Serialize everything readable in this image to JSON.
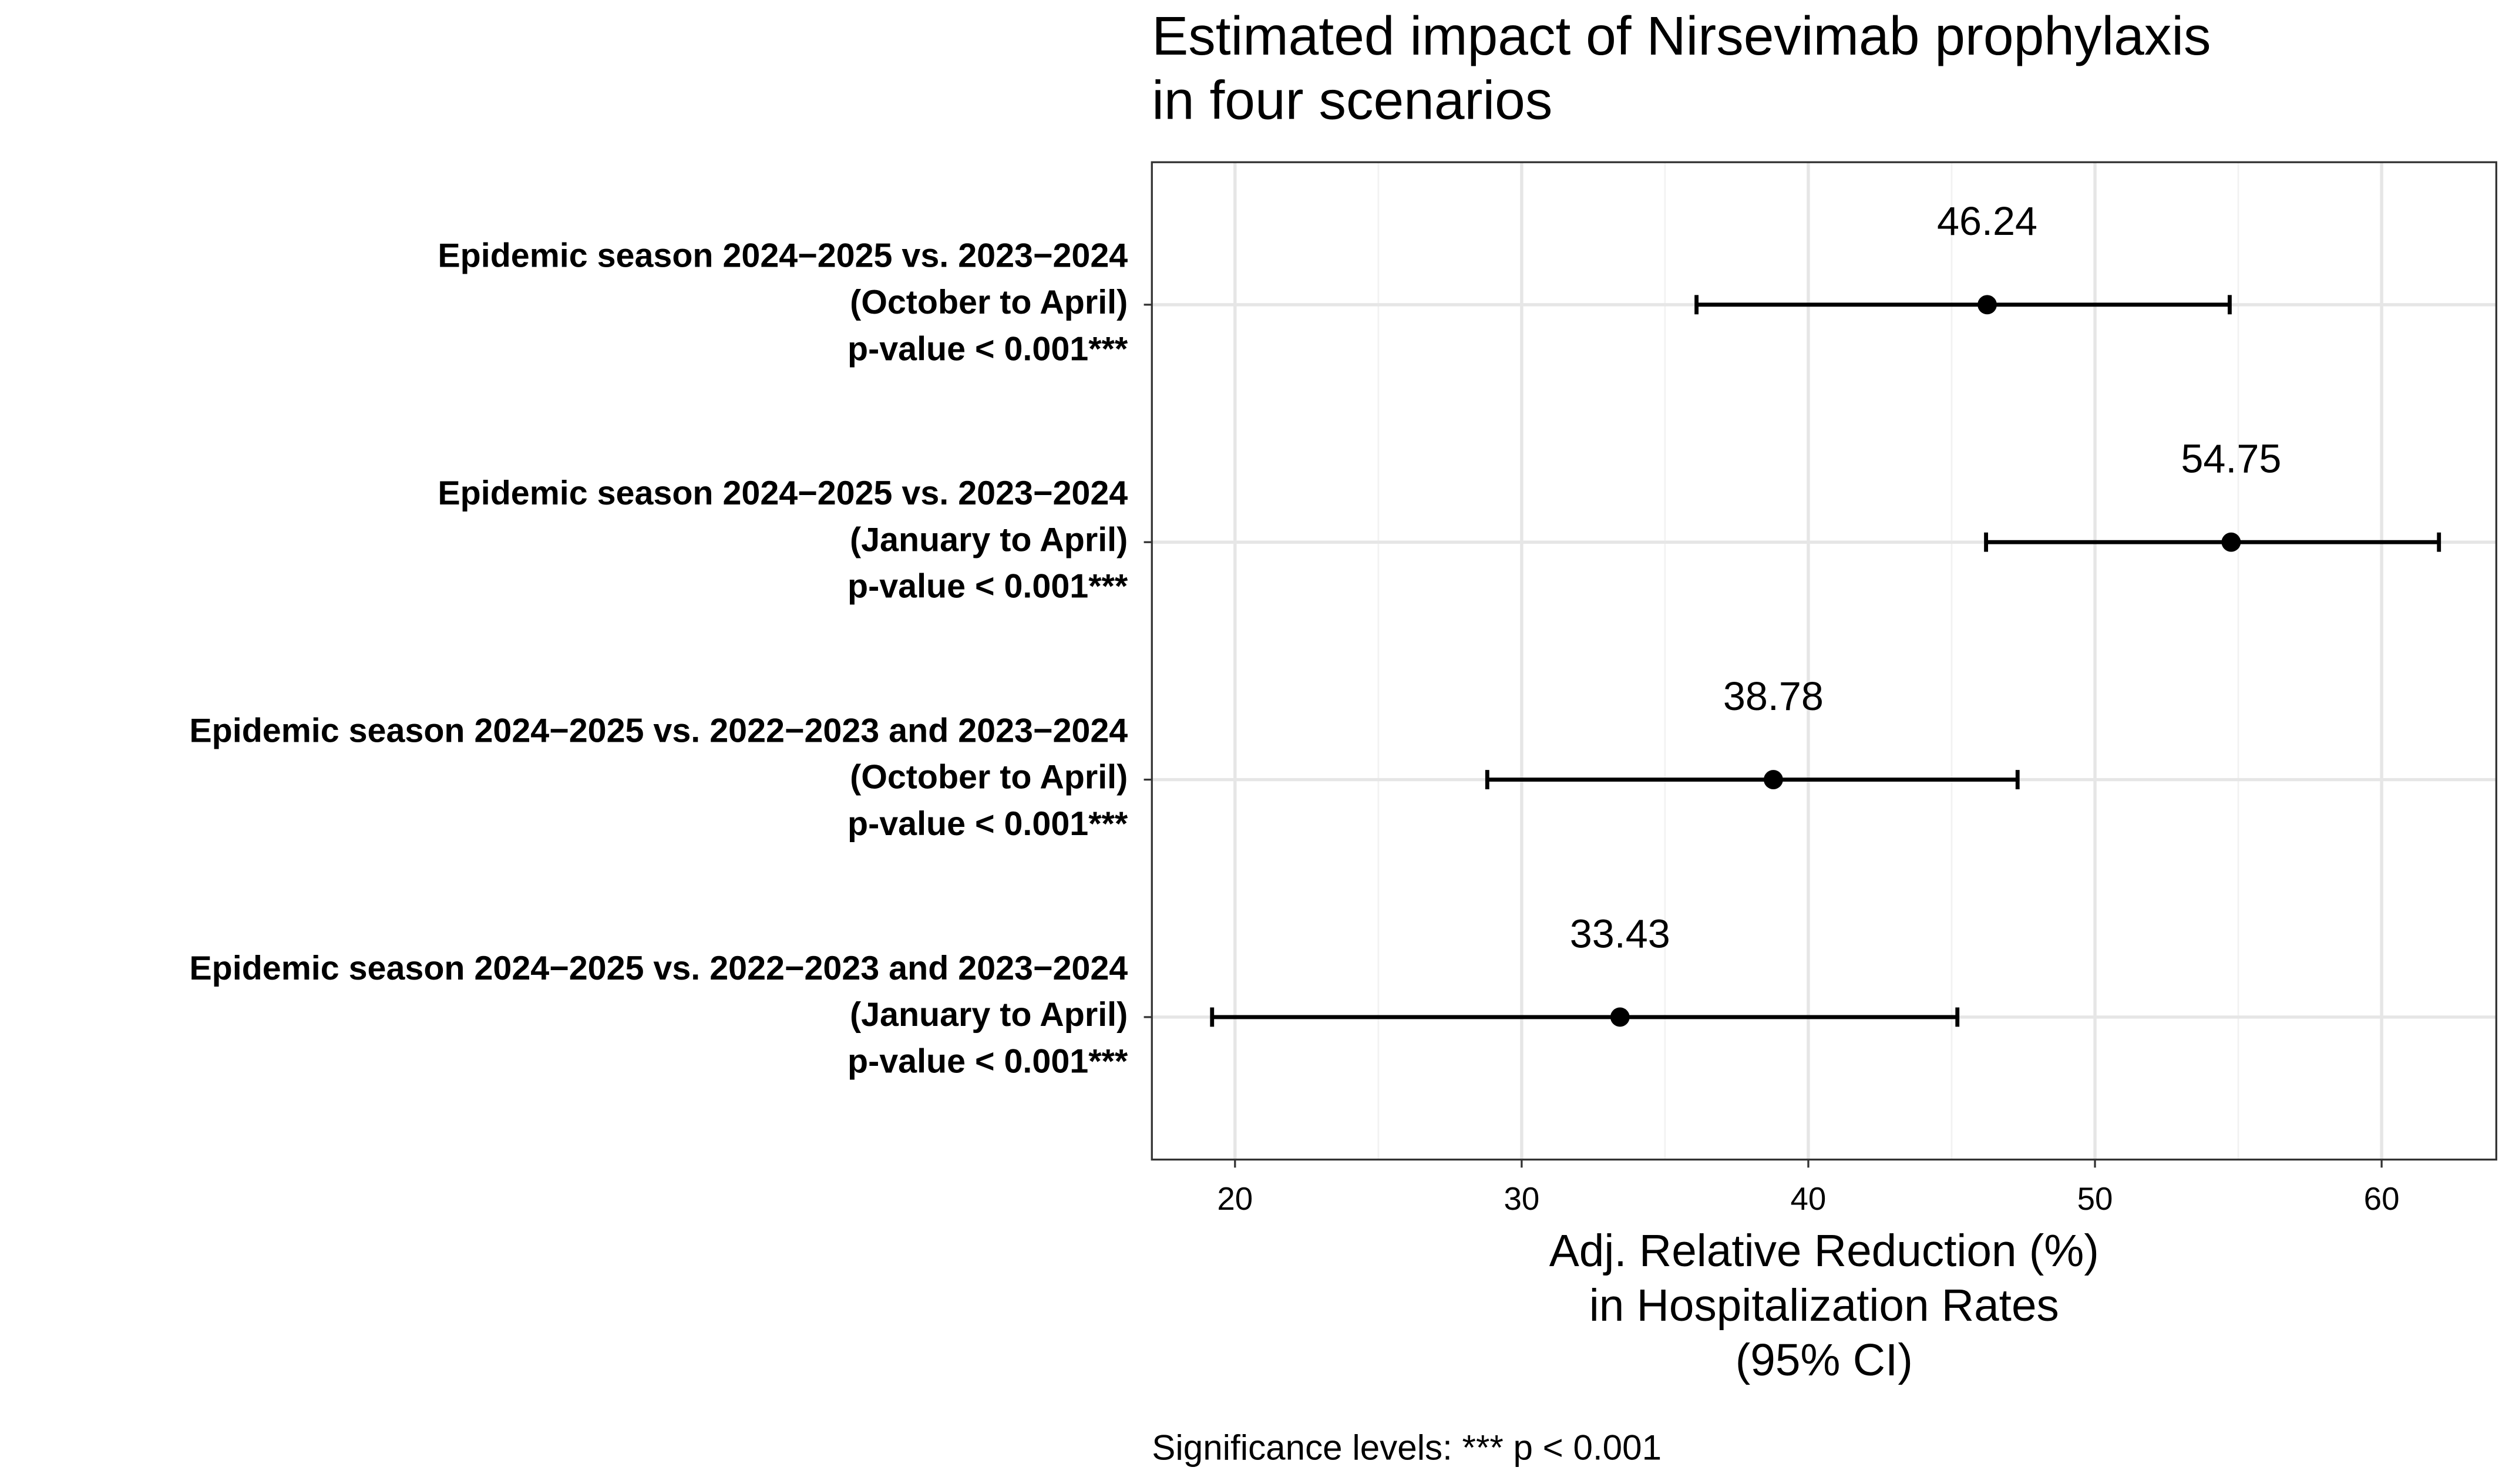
{
  "chart_data": {
    "type": "forest",
    "title": [
      "Estimated impact of Nirsevimab prophylaxis",
      "in four scenarios"
    ],
    "categories": [
      [
        "Epidemic season 2024−2025 vs. 2023−2024",
        "(October to April)"
      ],
      [
        "Epidemic season 2024−2025 vs. 2023−2024",
        "(January to April)"
      ],
      [
        "Epidemic season 2024−2025 vs. 2022−2023 and 2023−2024",
        "(October to April)"
      ],
      [
        "Epidemic season 2024−2025 vs. 2022−2023 and 2023−2024",
        "(January to April)"
      ]
    ],
    "p_labels": [
      "p-value < 0.001***",
      "p-value < 0.001***",
      "p-value < 0.001***",
      "p-value < 0.001***"
    ],
    "values": [
      46.24,
      54.75,
      38.78,
      33.43
    ],
    "ci_lower": [
      36.1,
      46.2,
      28.8,
      19.2
    ],
    "ci_upper": [
      54.7,
      62.0,
      47.3,
      45.2
    ],
    "color": "#000000",
    "xlim": [
      17.1,
      64.0
    ],
    "xticks": [
      20,
      30,
      40,
      50,
      60
    ],
    "minor_xticks": [
      25,
      35,
      45,
      55
    ],
    "grid": true,
    "xlabel": [
      "Adj. Relative Reduction (%)",
      "in Hospitalization Rates",
      "(95% CI)"
    ],
    "footnote": "Significance levels: *** p < 0.001"
  }
}
